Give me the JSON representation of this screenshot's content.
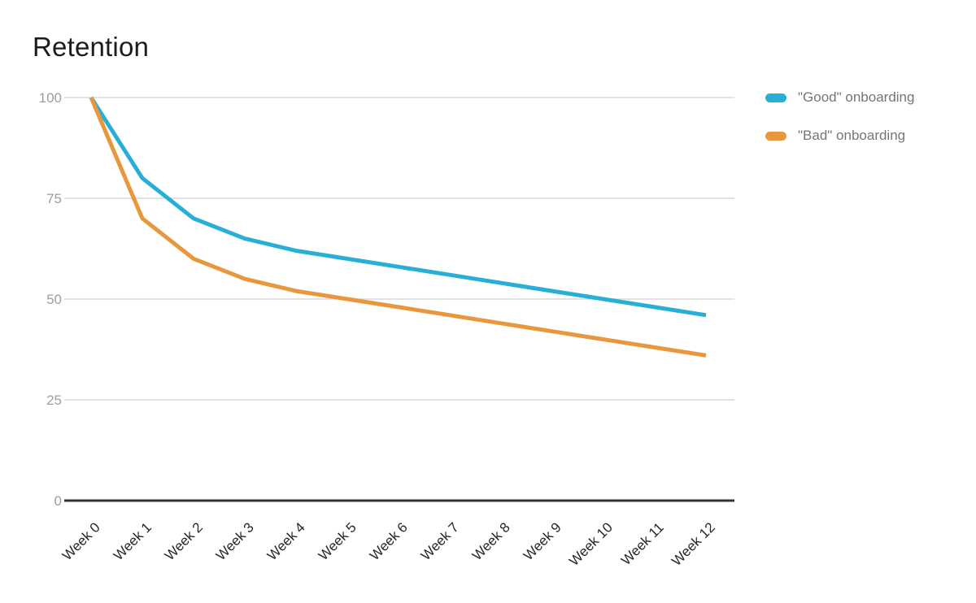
{
  "title": "Retention",
  "chart_data": {
    "type": "line",
    "title": "Retention",
    "xlabel": "",
    "ylabel": "",
    "categories": [
      "Week 0",
      "Week 1",
      "Week 2",
      "Week 3",
      "Week 4",
      "Week 5",
      "Week 6",
      "Week 7",
      "Week 8",
      "Week 9",
      "Week 10",
      "Week 11",
      "Week 12"
    ],
    "series": [
      {
        "name": "\"Good\" onboarding",
        "color": "#27afd6",
        "values": [
          100,
          80,
          70,
          65,
          62,
          60,
          58,
          56,
          54,
          52,
          50,
          48,
          46
        ]
      },
      {
        "name": "\"Bad\" onboarding",
        "color": "#e8973c",
        "values": [
          100,
          70,
          60,
          55,
          52,
          50,
          48,
          46,
          44,
          42,
          40,
          38,
          36
        ]
      }
    ],
    "ylim": [
      0,
      100
    ],
    "yticks": [
      0,
      25,
      50,
      75,
      100
    ],
    "grid": true,
    "legend_position": "right",
    "colors": {
      "background": "#ffffff",
      "grid_line": "#d9d9d9",
      "axis_line": "#333333",
      "y_tick_label": "#9e9e9e",
      "x_tick_label": "#262626",
      "title": "#1c1c1c",
      "legend_text": "#757575"
    }
  }
}
